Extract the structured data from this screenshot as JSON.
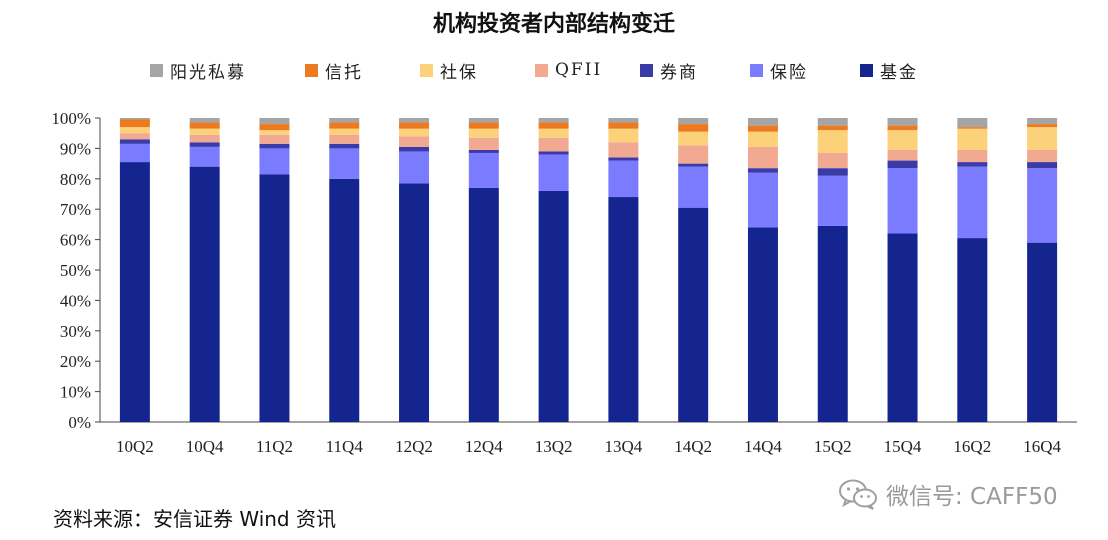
{
  "chart_data": {
    "type": "bar",
    "stacked": true,
    "title": "机构投资者内部结构变迁",
    "categories": [
      "10Q2",
      "10Q4",
      "11Q2",
      "11Q4",
      "12Q2",
      "12Q4",
      "13Q2",
      "13Q4",
      "14Q2",
      "14Q4",
      "15Q2",
      "15Q4",
      "16Q2",
      "16Q4"
    ],
    "ylim": [
      0,
      100
    ],
    "yticks": [
      "0%",
      "10%",
      "20%",
      "30%",
      "40%",
      "50%",
      "60%",
      "70%",
      "80%",
      "90%",
      "100%"
    ],
    "legend": [
      "阳光私募",
      "信托",
      "社保",
      "QFII",
      "券商",
      "保险",
      "基金"
    ],
    "legend_position": "top",
    "grid": false,
    "series": [
      {
        "name": "基金",
        "color": "#15258f",
        "values": [
          85.5,
          84,
          81.5,
          80,
          78.5,
          77,
          76,
          74,
          70.5,
          64,
          64.5,
          62,
          60.5,
          59
        ]
      },
      {
        "name": "保险",
        "color": "#7b7bff",
        "values": [
          6,
          6.5,
          8.5,
          10,
          10.5,
          11.5,
          12,
          12,
          13.5,
          18,
          16.5,
          21.5,
          23.5,
          24.5
        ]
      },
      {
        "name": "券商",
        "color": "#3a3aa8",
        "values": [
          1.5,
          1.5,
          1.5,
          1.5,
          1.5,
          1,
          1,
          1,
          1,
          1.5,
          2.5,
          2.5,
          1.5,
          2
        ]
      },
      {
        "name": "QFII",
        "color": "#f2a992",
        "values": [
          2,
          2.5,
          3,
          3,
          3.5,
          4,
          4.5,
          5,
          6,
          7,
          5,
          3.5,
          4,
          4
        ]
      },
      {
        "name": "社保",
        "color": "#fbd27a",
        "values": [
          2,
          2,
          1.5,
          2,
          2.5,
          3,
          3,
          4.5,
          4.5,
          5,
          7.5,
          6.5,
          7,
          7.5
        ]
      },
      {
        "name": "信托",
        "color": "#ee7a1f",
        "values": [
          2.5,
          2,
          2,
          2,
          2,
          2,
          2,
          2,
          2.5,
          2,
          1.5,
          1.5,
          0.5,
          1
        ]
      },
      {
        "name": "阳光私募",
        "color": "#a5a5a5",
        "values": [
          0.5,
          1.5,
          2,
          1.5,
          1.5,
          1.5,
          1.5,
          1.5,
          2,
          2.5,
          2.5,
          2.5,
          3,
          2
        ]
      }
    ]
  },
  "source": "资料来源：安信证券  Wind 资讯",
  "watermark": {
    "text": "微信号: CAFF50",
    "icon": "wechat-icon"
  }
}
